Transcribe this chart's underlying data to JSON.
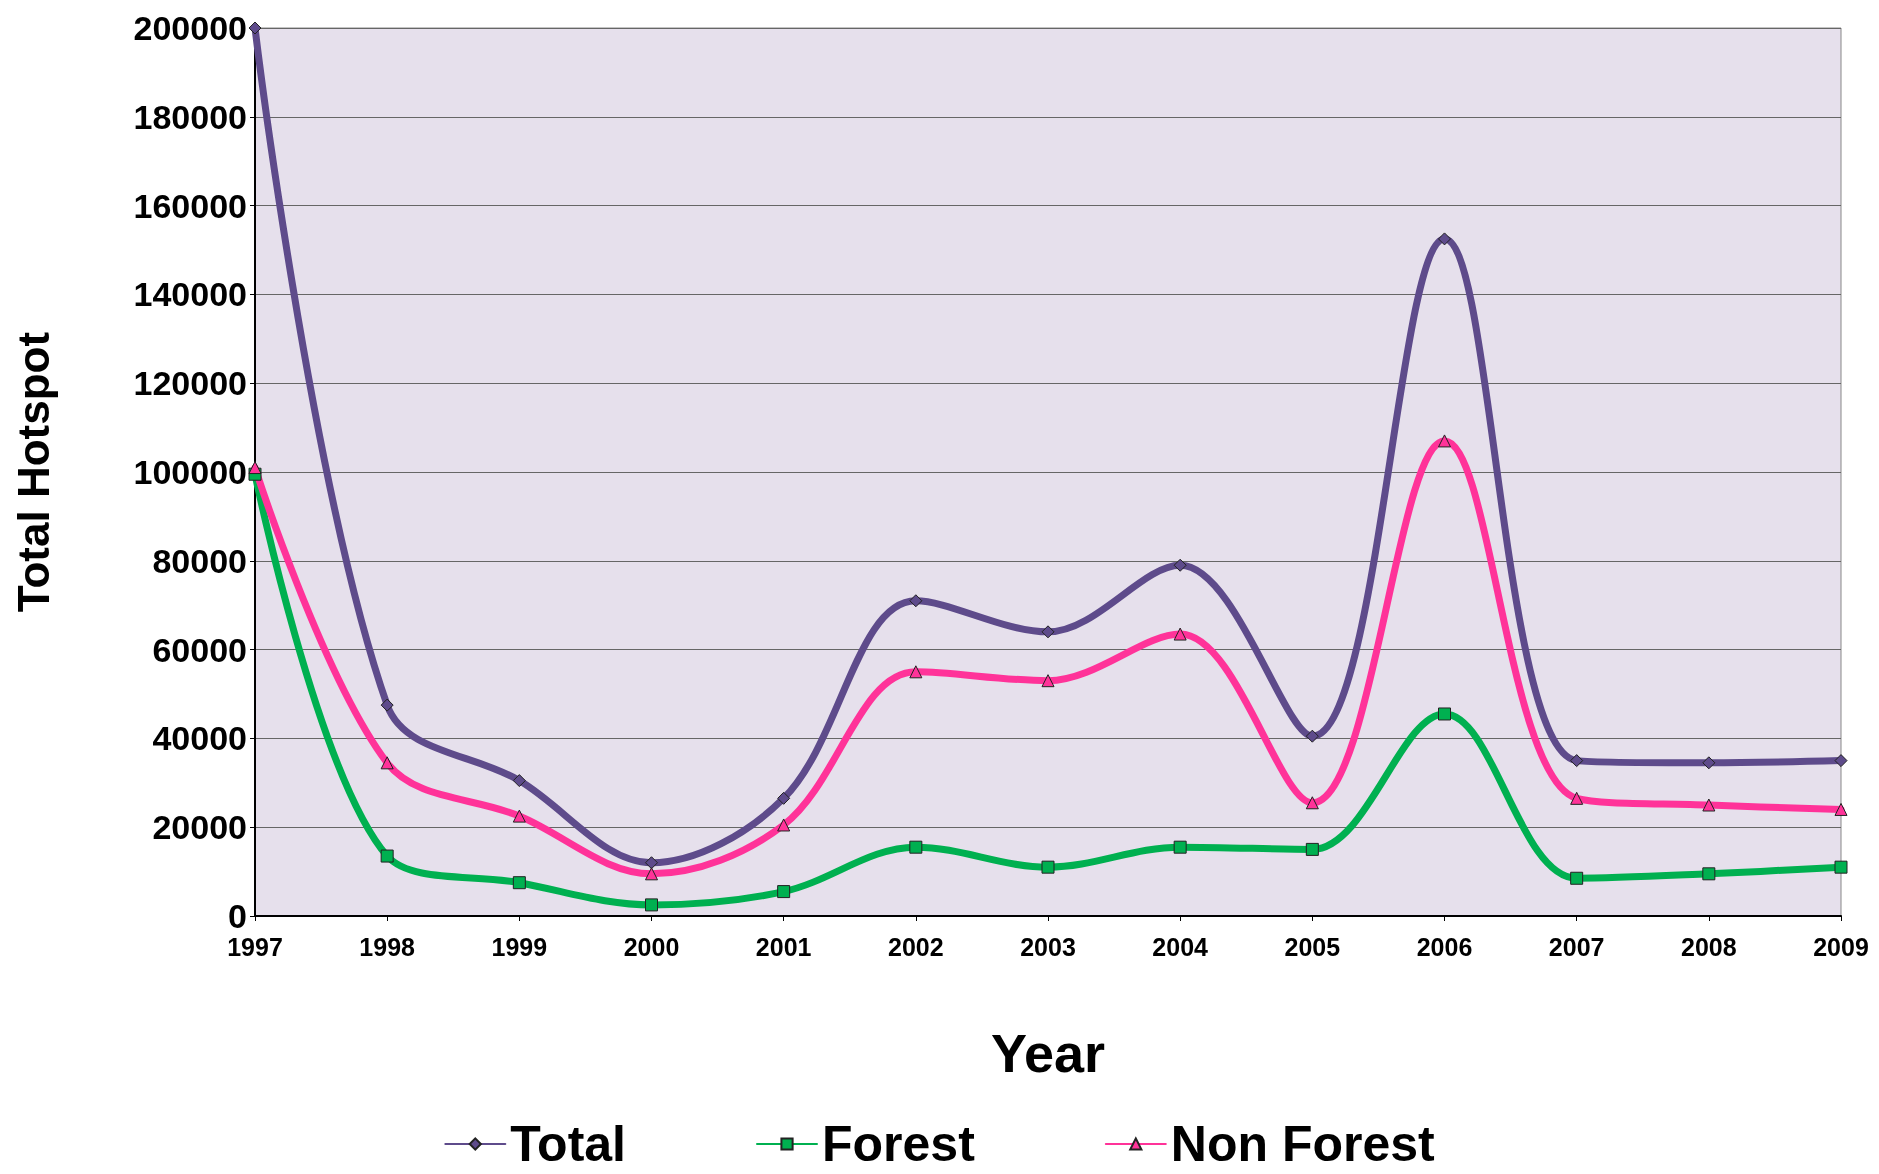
{
  "chart_data": {
    "type": "line",
    "xlabel": "Year",
    "ylabel": "Total Hotspot",
    "categories": [
      "1997",
      "1998",
      "1999",
      "2000",
      "2001",
      "2002",
      "2003",
      "2004",
      "2005",
      "2006",
      "2007",
      "2008",
      "2009"
    ],
    "series": [
      {
        "name": "Total",
        "color": "#5e4b8b",
        "marker": "diamond",
        "values": [
          200000,
          47500,
          30500,
          12000,
          26500,
          71000,
          64000,
          79000,
          40500,
          152500,
          35000,
          34500,
          35000
        ]
      },
      {
        "name": "Forest",
        "color": "#00b050",
        "marker": "square",
        "values": [
          99500,
          13500,
          7500,
          2500,
          5500,
          15500,
          11000,
          15500,
          15000,
          45500,
          8500,
          9500,
          11000
        ]
      },
      {
        "name": "Non Forest",
        "color": "#ff3399",
        "marker": "triangle",
        "values": [
          101000,
          34500,
          22500,
          9500,
          20500,
          55000,
          53000,
          63500,
          25500,
          107000,
          26500,
          25000,
          24000
        ]
      }
    ],
    "ylim": [
      0,
      200000
    ],
    "yticks": [
      0,
      20000,
      40000,
      60000,
      80000,
      100000,
      120000,
      140000,
      160000,
      180000,
      200000
    ],
    "grid": "y",
    "legend": "bottom"
  }
}
